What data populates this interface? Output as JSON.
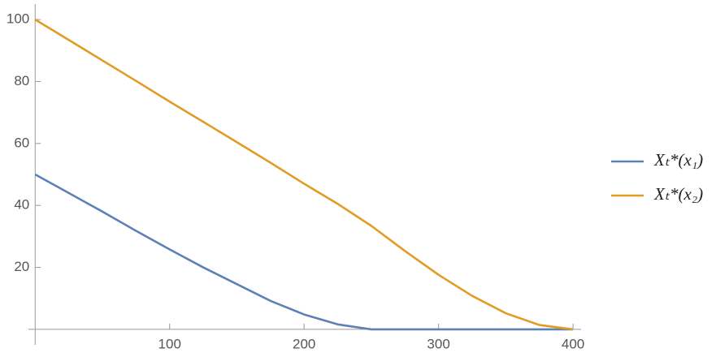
{
  "chart_data": {
    "type": "line",
    "x": [
      0,
      25,
      50,
      75,
      100,
      125,
      150,
      175,
      200,
      225,
      250,
      275,
      300,
      325,
      350,
      375,
      400
    ],
    "series": [
      {
        "name": "Xₜ*(x₁)",
        "color": "#5e81b5",
        "values": [
          50,
          44,
          38,
          31.8,
          25.8,
          20,
          14.6,
          9.2,
          4.8,
          1.6,
          0,
          0,
          0,
          0,
          0,
          0,
          0
        ]
      },
      {
        "name": "Xₜ*(x₂)",
        "color": "#e19c24",
        "values": [
          100,
          93.4,
          86.8,
          80.2,
          73.5,
          67,
          60.4,
          53.8,
          47,
          40.5,
          33.4,
          25.3,
          17.6,
          10.8,
          5.2,
          1.4,
          0
        ]
      }
    ],
    "xlim": [
      -5,
      406
    ],
    "ylim": [
      -5,
      105
    ],
    "xticks": [
      100,
      200,
      300,
      400
    ],
    "yticks": [
      20,
      40,
      60,
      80,
      100
    ],
    "legend": "right"
  }
}
